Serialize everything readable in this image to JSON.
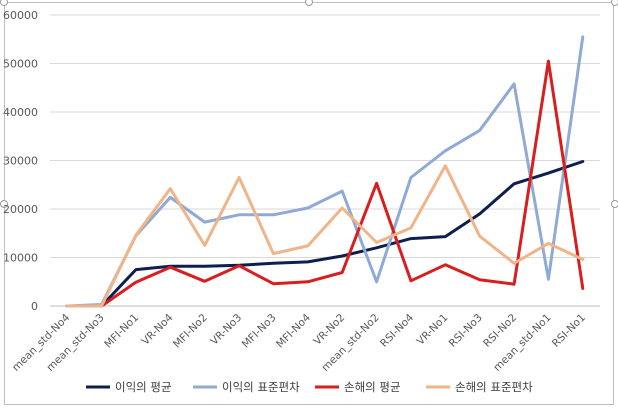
{
  "chart_data": {
    "type": "line",
    "title": "",
    "xlabel": "",
    "ylabel": "",
    "ylim": [
      0,
      60000
    ],
    "y_ticks": [
      "0",
      "10000",
      "20000",
      "30000",
      "40000",
      "50000",
      "60000"
    ],
    "grid": true,
    "legend_position": "bottom",
    "categories": [
      "mean_std-No4",
      "mean_std-No3",
      "MFI-No1",
      "VR-No4",
      "MFI-No2",
      "VR-No3",
      "MFI-No3",
      "MFI-No4",
      "VR-No2",
      "mean_std-No2",
      "RSI-No4",
      "VR-No1",
      "RSI-No3",
      "RSI-No2",
      "mean_std-No1",
      "RSI-No1"
    ],
    "series": [
      {
        "name": "이익의 평균",
        "color": "#0d1f4e",
        "values": [
          0,
          0,
          7500,
          8200,
          8200,
          8400,
          8800,
          9100,
          10300,
          12000,
          13900,
          14300,
          19000,
          25200,
          27400,
          29800
        ]
      },
      {
        "name": "이익의 표준편차",
        "color": "#8faad6",
        "values": [
          0,
          300,
          14500,
          22400,
          17300,
          18800,
          18800,
          20200,
          23700,
          5000,
          26500,
          32000,
          36200,
          45800,
          5500,
          55500
        ]
      },
      {
        "name": "손해의 평균",
        "color": "#d81e1e",
        "values": [
          0,
          0,
          4900,
          8000,
          5100,
          8300,
          4600,
          5000,
          6900,
          25300,
          5200,
          8500,
          5400,
          4500,
          50500,
          3600
        ]
      },
      {
        "name": "손해의 표준편차",
        "color": "#f0b488",
        "values": [
          0,
          0,
          14600,
          24200,
          12500,
          26500,
          10800,
          12400,
          20200,
          13100,
          16100,
          28900,
          14400,
          8800,
          12900,
          9600
        ]
      }
    ]
  }
}
